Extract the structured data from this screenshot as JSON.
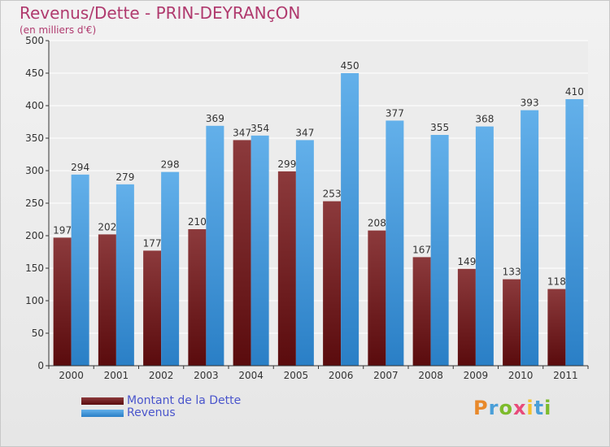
{
  "title": "Revenus/Dette - PRIN-DEYRANçON",
  "subtitle": "(en milliers d'€)",
  "logo": "Proxiti",
  "logo_colors": [
    "#e8892b",
    "#4a9fd8",
    "#7dbb2c",
    "#e84a7a",
    "#f2c12e",
    "#4a9fd8",
    "#7dbb2c"
  ],
  "colors": {
    "dette_light": "#8c3a3c",
    "dette_dark": "#5a0b0d",
    "revenus_light": "#63b0ea",
    "revenus_dark": "#2a7fc6"
  },
  "chart_data": {
    "type": "bar",
    "categories": [
      "2000",
      "2001",
      "2002",
      "2003",
      "2004",
      "2005",
      "2006",
      "2007",
      "2008",
      "2009",
      "2010",
      "2011"
    ],
    "series": [
      {
        "name": "Montant de la Dette",
        "values": [
          197,
          202,
          177,
          210,
          347,
          299,
          253,
          208,
          167,
          149,
          133,
          118
        ]
      },
      {
        "name": "Revenus",
        "values": [
          294,
          279,
          298,
          369,
          354,
          347,
          450,
          377,
          355,
          368,
          393,
          410
        ]
      }
    ],
    "ylim": [
      0,
      500
    ],
    "yticks": [
      0,
      50,
      100,
      150,
      200,
      250,
      300,
      350,
      400,
      450,
      500
    ],
    "grid": true,
    "legend": "bottom-left"
  }
}
